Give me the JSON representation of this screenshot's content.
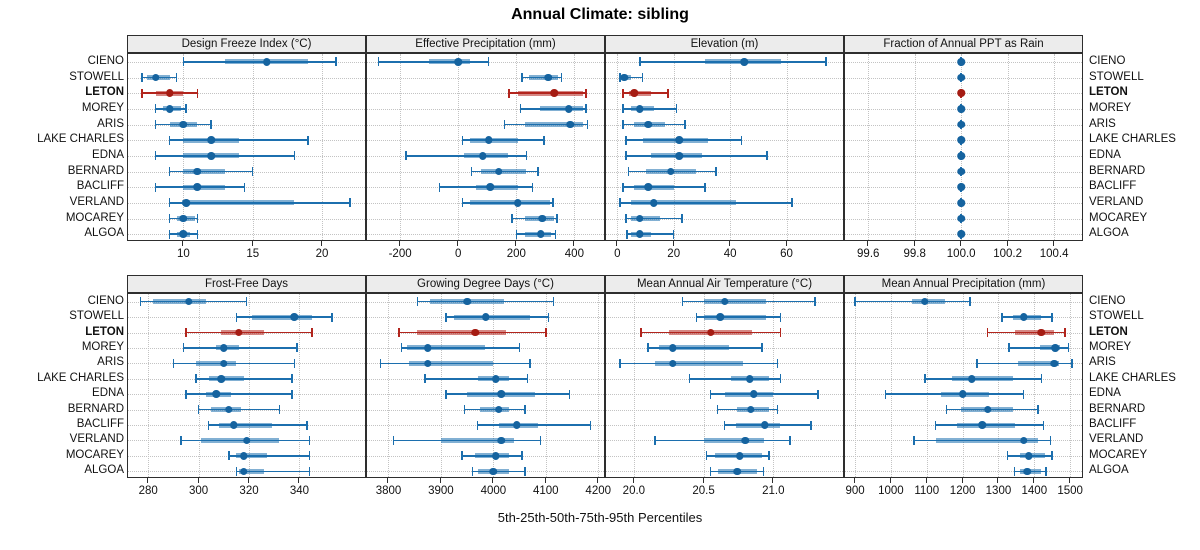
{
  "title": "Annual Climate: sibling",
  "caption": "5th-25th-50th-75th-95th Percentiles",
  "locations": [
    "CIENO",
    "STOWELL",
    "LETON",
    "MOREY",
    "ARIS",
    "LAKE CHARLES",
    "EDNA",
    "BERNARD",
    "BACLIFF",
    "VERLAND",
    "MOCAREY",
    "ALGOA"
  ],
  "highlighted_location": "LETON",
  "colors": {
    "series_line": "#1c6fae",
    "series_dot": "#15639f",
    "highlight_line": "#b2251d",
    "highlight_dot": "#a51c13",
    "strip_bg": "#ececec",
    "panel_border": "#2e2e2e",
    "grid": "#c3c3c3"
  },
  "chart_data": {
    "type": "percentile-range (trellis, 8 panels)",
    "percentiles": [
      5,
      25,
      50,
      75,
      95
    ],
    "categories": [
      "CIENO",
      "STOWELL",
      "LETON",
      "MOREY",
      "ARIS",
      "LAKE CHARLES",
      "EDNA",
      "BERNARD",
      "BACLIFF",
      "VERLAND",
      "MOCAREY",
      "ALGOA"
    ],
    "legend_position": "none",
    "grid": "dotted",
    "panels": [
      {
        "title": "Design Freeze Index (°C)",
        "row": 1,
        "xlim": [
          6,
          23.1
        ],
        "ticks": [
          10,
          15,
          20
        ],
        "tick_labels": [
          "10",
          "15",
          "20"
        ],
        "values": [
          [
            10,
            13,
            16,
            19,
            21
          ],
          [
            7,
            7.4,
            8,
            9,
            9.5
          ],
          [
            7,
            8,
            9,
            10,
            11
          ],
          [
            8,
            8.5,
            9,
            9.8,
            10.2
          ],
          [
            8,
            9,
            10,
            11,
            12
          ],
          [
            9,
            10,
            12,
            14,
            19
          ],
          [
            8,
            10,
            12,
            14,
            18
          ],
          [
            9,
            10,
            11,
            13,
            15
          ],
          [
            8,
            10,
            11,
            13,
            14.4
          ],
          [
            9,
            9.9,
            10.2,
            18,
            22
          ],
          [
            9,
            9.5,
            10,
            10.8,
            11
          ],
          [
            9,
            9.5,
            10,
            10.5,
            11
          ]
        ]
      },
      {
        "title": "Effective Precipitation (mm)",
        "row": 1,
        "xlim": [
          -314,
          502
        ],
        "ticks": [
          -200,
          0,
          200,
          400
        ],
        "tick_labels": [
          "-200",
          "0",
          "200",
          "400"
        ],
        "values": [
          [
            -275,
            -100,
            0,
            40,
            105
          ],
          [
            220,
            245,
            310,
            345,
            355
          ],
          [
            175,
            205,
            330,
            430,
            440
          ],
          [
            215,
            280,
            380,
            430,
            440
          ],
          [
            160,
            230,
            385,
            430,
            445
          ],
          [
            15,
            40,
            105,
            205,
            295
          ],
          [
            -180,
            20,
            85,
            170,
            235
          ],
          [
            45,
            80,
            140,
            235,
            275
          ],
          [
            -65,
            60,
            110,
            205,
            255
          ],
          [
            15,
            40,
            205,
            315,
            327
          ],
          [
            185,
            230,
            290,
            330,
            340
          ],
          [
            200,
            230,
            285,
            320,
            335
          ]
        ]
      },
      {
        "title": "Elevation (m)",
        "row": 1,
        "xlim": [
          -4,
          80
        ],
        "ticks": [
          0,
          20,
          40,
          60
        ],
        "tick_labels": [
          "0",
          "20",
          "40",
          "60"
        ],
        "values": [
          [
            8,
            31,
            45,
            58,
            74
          ],
          [
            1,
            1.5,
            2.5,
            5,
            9
          ],
          [
            2,
            4,
            6,
            12,
            18
          ],
          [
            2,
            5,
            8,
            13,
            21
          ],
          [
            2,
            6,
            11,
            17,
            24
          ],
          [
            3,
            9,
            22,
            32,
            44
          ],
          [
            3,
            12,
            22,
            30,
            53
          ],
          [
            4,
            10,
            19,
            28,
            35
          ],
          [
            2,
            6,
            11,
            20,
            31
          ],
          [
            1,
            5,
            13,
            42,
            62
          ],
          [
            3,
            5,
            8,
            15,
            23
          ],
          [
            3.5,
            5,
            8,
            12,
            20
          ]
        ]
      },
      {
        "title": "Fraction of Annual PPT as Rain",
        "row": 1,
        "xlim": [
          99.5,
          100.52
        ],
        "ticks": [
          99.6,
          99.8,
          100.0,
          100.2,
          100.4
        ],
        "tick_labels": [
          "99.6",
          "99.8",
          "100.0",
          "100.2",
          "100.4"
        ],
        "values": [
          [
            100,
            100,
            100,
            100,
            100
          ],
          [
            100,
            100,
            100,
            100,
            100
          ],
          [
            100,
            100,
            100,
            100,
            100
          ],
          [
            100,
            100,
            100,
            100,
            100
          ],
          [
            100,
            100,
            100,
            100,
            100
          ],
          [
            100,
            100,
            100,
            100,
            100
          ],
          [
            100,
            100,
            100,
            100,
            100
          ],
          [
            100,
            100,
            100,
            100,
            100
          ],
          [
            100,
            100,
            100,
            100,
            100
          ],
          [
            100,
            100,
            100,
            100,
            100
          ],
          [
            100,
            100,
            100,
            100,
            100
          ],
          [
            100,
            100,
            100,
            100,
            100
          ]
        ]
      },
      {
        "title": "Frost-Free Days",
        "row": 2,
        "xlim": [
          272,
          366
        ],
        "ticks": [
          280,
          300,
          320,
          340
        ],
        "tick_labels": [
          "280",
          "300",
          "320",
          "340"
        ],
        "values": [
          [
            277,
            282,
            296,
            303,
            319
          ],
          [
            315,
            321,
            338,
            345,
            353
          ],
          [
            295,
            309,
            316,
            326,
            345
          ],
          [
            294,
            307,
            310,
            316,
            339
          ],
          [
            290,
            299,
            310,
            315,
            338
          ],
          [
            299,
            304,
            309,
            318,
            337
          ],
          [
            295,
            303,
            307,
            313,
            337
          ],
          [
            300,
            305,
            312,
            317,
            332
          ],
          [
            304,
            308,
            314,
            329,
            343
          ],
          [
            293,
            301,
            319,
            332,
            344
          ],
          [
            312,
            315,
            318,
            327,
            344
          ],
          [
            315,
            316,
            318,
            326,
            344
          ]
        ]
      },
      {
        "title": "Growing Degree Days (°C)",
        "row": 2,
        "xlim": [
          3759,
          4211
        ],
        "ticks": [
          3800,
          3900,
          4000,
          4100,
          4200
        ],
        "tick_labels": [
          "3800",
          "3900",
          "4000",
          "4100",
          "4200"
        ],
        "values": [
          [
            3855,
            3880,
            3950,
            4020,
            4115
          ],
          [
            3910,
            3925,
            3985,
            4070,
            4105
          ],
          [
            3820,
            3855,
            3965,
            4025,
            4100
          ],
          [
            3825,
            3835,
            3875,
            3985,
            4050
          ],
          [
            3785,
            3840,
            3875,
            4000,
            4070
          ],
          [
            3870,
            3970,
            4005,
            4030,
            4065
          ],
          [
            3910,
            3950,
            4015,
            4080,
            4145
          ],
          [
            3945,
            3975,
            4010,
            4030,
            4060
          ],
          [
            3970,
            4010,
            4045,
            4085,
            4185
          ],
          [
            3810,
            3900,
            4015,
            4040,
            4090
          ],
          [
            3940,
            3965,
            4005,
            4030,
            4055
          ],
          [
            3960,
            3970,
            4000,
            4030,
            4060
          ]
        ]
      },
      {
        "title": "Mean Annual Air Temperature (°C)",
        "row": 2,
        "xlim": [
          19.8,
          21.5
        ],
        "ticks": [
          20.0,
          20.5,
          21.0
        ],
        "tick_labels": [
          "20.0",
          "20.5",
          "21.0"
        ],
        "values": [
          [
            20.35,
            20.5,
            20.65,
            20.95,
            21.3
          ],
          [
            20.45,
            20.5,
            20.62,
            20.95,
            21.05
          ],
          [
            20.05,
            20.25,
            20.55,
            20.85,
            21.05
          ],
          [
            20.1,
            20.18,
            20.28,
            20.68,
            20.92
          ],
          [
            19.9,
            20.15,
            20.28,
            20.78,
            21.03
          ],
          [
            20.4,
            20.7,
            20.83,
            20.97,
            21.05
          ],
          [
            20.55,
            20.65,
            20.86,
            21.0,
            21.32
          ],
          [
            20.6,
            20.74,
            20.84,
            20.97,
            21.03
          ],
          [
            20.65,
            20.73,
            20.94,
            21.05,
            21.27
          ],
          [
            20.15,
            20.5,
            20.8,
            20.93,
            21.12
          ],
          [
            20.52,
            20.58,
            20.76,
            20.92,
            20.97
          ],
          [
            20.55,
            20.6,
            20.74,
            20.88,
            20.93
          ]
        ]
      },
      {
        "title": "Mean Annual Precipitation (mm)",
        "row": 2,
        "xlim": [
          872,
          1533
        ],
        "ticks": [
          900,
          1000,
          1100,
          1200,
          1300,
          1400,
          1500
        ],
        "tick_labels": [
          "900",
          "1000",
          "1100",
          "1200",
          "1300",
          "1400",
          "1500"
        ],
        "values": [
          [
            900,
            1060,
            1095,
            1150,
            1220
          ],
          [
            1310,
            1340,
            1370,
            1420,
            1450
          ],
          [
            1270,
            1345,
            1420,
            1455,
            1485
          ],
          [
            1330,
            1415,
            1458,
            1472,
            1495
          ],
          [
            1240,
            1355,
            1455,
            1470,
            1505
          ],
          [
            1095,
            1170,
            1225,
            1340,
            1420
          ],
          [
            985,
            1140,
            1200,
            1275,
            1370
          ],
          [
            1155,
            1195,
            1270,
            1340,
            1410
          ],
          [
            1125,
            1185,
            1255,
            1345,
            1425
          ],
          [
            1065,
            1125,
            1370,
            1410,
            1445
          ],
          [
            1325,
            1360,
            1385,
            1430,
            1450
          ],
          [
            1345,
            1360,
            1380,
            1420,
            1432
          ]
        ]
      }
    ]
  }
}
